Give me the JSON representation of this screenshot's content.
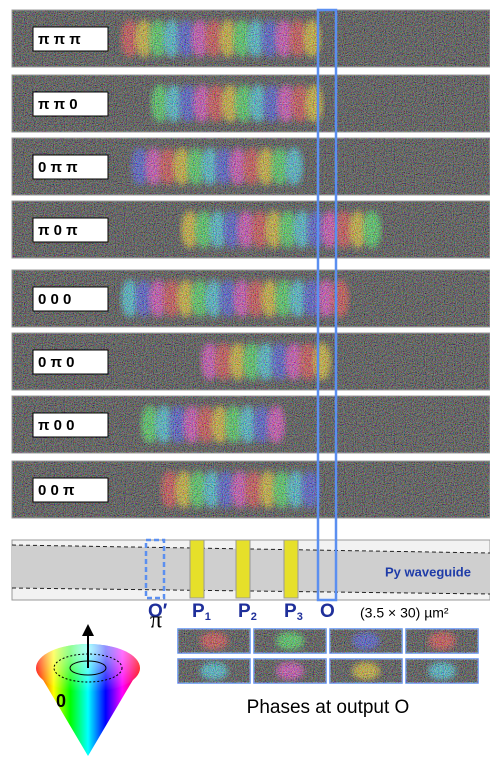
{
  "rows": [
    "π π π",
    "π π 0",
    "0 π π",
    "π 0 π",
    "0 0 0",
    "0 π 0",
    "π 0 0",
    "0 0 π"
  ],
  "waveguide_label": "Py waveguide",
  "ports": [
    {
      "name": "O′"
    },
    {
      "name": "P",
      "sub": "1"
    },
    {
      "name": "P",
      "sub": "2"
    },
    {
      "name": "P",
      "sub": "3"
    },
    {
      "name": "O"
    }
  ],
  "dimension": "(3.5 × 30) µm²",
  "cone": {
    "top": "π",
    "bottom": "0"
  },
  "caption": "Phases at output O"
}
